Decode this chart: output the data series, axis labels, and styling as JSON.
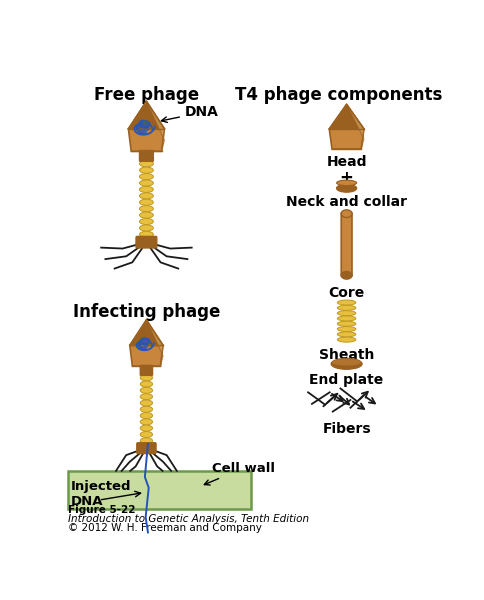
{
  "title_left": "Free phage",
  "title_right": "T4 phage components",
  "title_left2": "Infecting phage",
  "bg_color": "#ffffff",
  "head_color": "#c8863c",
  "head_light": "#d4a060",
  "head_dark": "#9a6020",
  "sheath_color": "#e8c040",
  "sheath_dark": "#c09820",
  "core_color": "#c8863c",
  "fiber_color": "#1a1a1a",
  "dna_color": "#2255bb",
  "cell_wall_color": "#c8dca0",
  "cell_wall_edge": "#6a9a4a",
  "text_color": "#000000",
  "label_dna": "DNA",
  "label_head": "Head",
  "label_neck": "Neck and collar",
  "label_core": "Core",
  "label_sheath": "Sheath",
  "label_endplate": "End plate",
  "label_fibers": "Fibers",
  "label_injected": "Injected\nDNA",
  "label_cellwall": "Cell wall",
  "figure_label": "Figure 5-22",
  "caption1": "Introduction to Genetic Analysis, Tenth Edition",
  "caption2": "© 2012 W. H. Freeman and Company"
}
